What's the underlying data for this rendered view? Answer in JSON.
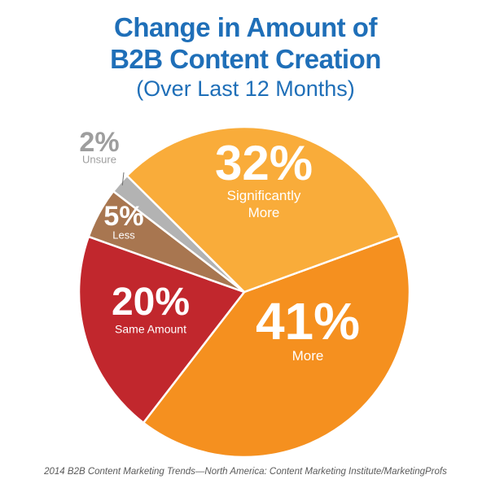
{
  "chart_data": {
    "type": "pie",
    "title": "Change in Amount of B2B Content Creation",
    "title_lines": [
      "Change in Amount of",
      "B2B Content Creation"
    ],
    "subtitle": "(Over Last 12 Months)",
    "unit": "%",
    "slices": [
      {
        "label": "More",
        "value": 41,
        "color": "#f5901f"
      },
      {
        "label": "Same Amount",
        "value": 20,
        "color": "#c1272d"
      },
      {
        "label": "Less",
        "value": 5,
        "color": "#a87650"
      },
      {
        "label": "Unsure",
        "value": 2,
        "color": "#b3b3b3"
      },
      {
        "label": "Significantly More",
        "value": 32,
        "color": "#f9ac3a"
      }
    ],
    "legend": "none",
    "source": "2014 B2B Content Marketing Trends—North America: Content Marketing Institute/MarketingProfs"
  }
}
